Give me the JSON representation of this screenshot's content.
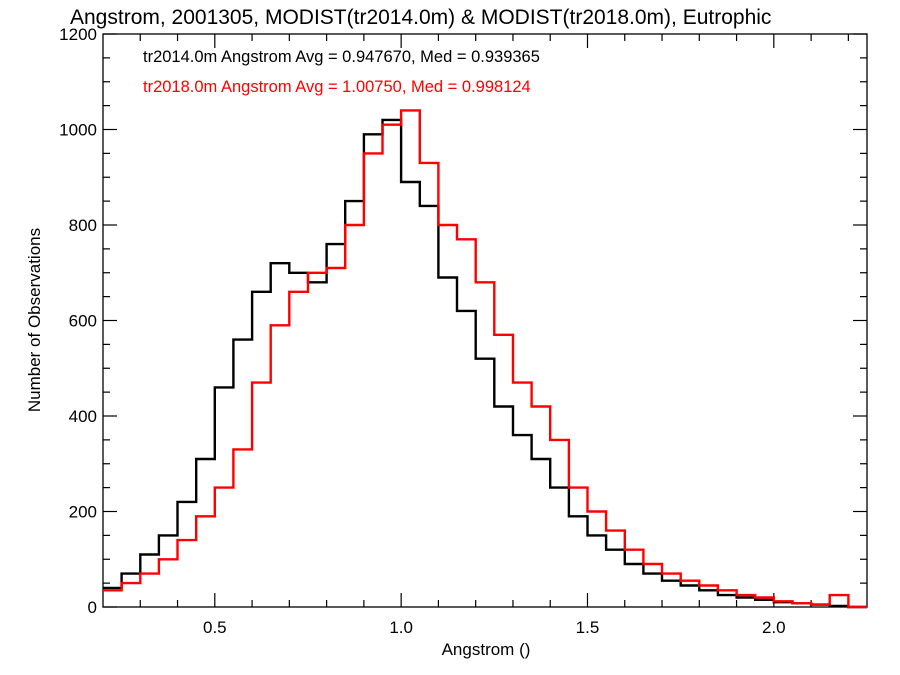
{
  "chart_data": {
    "type": "line",
    "style": "histogram-step",
    "title": "Angstrom, 2001305, MODIST(tr2014.0m) & MODIST(tr2018.0m), Eutrophic",
    "xlabel": "Angstrom ()",
    "ylabel": "Number of Observations",
    "xlim": [
      0.2,
      2.25
    ],
    "ylim": [
      0,
      1200
    ],
    "x_ticks": [
      0.5,
      1.0,
      1.5,
      2.0
    ],
    "x_tick_labels": [
      "0.5",
      "1.0",
      "1.5",
      "2.0"
    ],
    "y_ticks": [
      0,
      200,
      400,
      600,
      800,
      1000,
      1200
    ],
    "y_tick_labels": [
      "0",
      "200",
      "400",
      "600",
      "800",
      "1000",
      "1200"
    ],
    "grid": false,
    "annotations": [
      {
        "text": "tr2014.0m Angstrom Avg = 0.947670, Med = 0.939365",
        "color": "#000000"
      },
      {
        "text": "tr2018.0m Angstrom Avg = 1.00750, Med = 0.998124",
        "color": "#ff0000"
      }
    ],
    "series": [
      {
        "color": "#000000",
        "x": [
          0.2,
          0.25,
          0.3,
          0.35,
          0.4,
          0.45,
          0.5,
          0.55,
          0.6,
          0.65,
          0.7,
          0.75,
          0.8,
          0.85,
          0.9,
          0.95,
          1.0,
          1.05,
          1.1,
          1.15,
          1.2,
          1.25,
          1.3,
          1.35,
          1.4,
          1.45,
          1.5,
          1.55,
          1.6,
          1.65,
          1.7,
          1.75,
          1.8,
          1.85,
          1.9,
          1.95,
          2.0,
          2.05,
          2.1,
          2.15,
          2.2,
          2.25
        ],
        "values": [
          40,
          70,
          110,
          150,
          220,
          310,
          460,
          560,
          660,
          720,
          700,
          680,
          760,
          850,
          990,
          1020,
          890,
          840,
          690,
          620,
          520,
          420,
          360,
          310,
          250,
          190,
          150,
          120,
          90,
          70,
          55,
          45,
          35,
          25,
          20,
          15,
          10,
          8,
          5,
          2,
          0,
          0
        ]
      },
      {
        "color": "#ff0000",
        "x": [
          0.2,
          0.25,
          0.3,
          0.35,
          0.4,
          0.45,
          0.5,
          0.55,
          0.6,
          0.65,
          0.7,
          0.75,
          0.8,
          0.85,
          0.9,
          0.95,
          1.0,
          1.05,
          1.1,
          1.15,
          1.2,
          1.25,
          1.3,
          1.35,
          1.4,
          1.45,
          1.5,
          1.55,
          1.6,
          1.65,
          1.7,
          1.75,
          1.8,
          1.85,
          1.9,
          1.95,
          2.0,
          2.05,
          2.1,
          2.15,
          2.2,
          2.25
        ],
        "values": [
          35,
          50,
          70,
          100,
          140,
          190,
          250,
          330,
          470,
          590,
          660,
          700,
          710,
          800,
          950,
          1010,
          1040,
          930,
          800,
          770,
          680,
          570,
          470,
          420,
          350,
          250,
          200,
          160,
          120,
          90,
          70,
          55,
          45,
          35,
          25,
          20,
          12,
          8,
          5,
          25,
          0,
          0
        ]
      }
    ]
  }
}
